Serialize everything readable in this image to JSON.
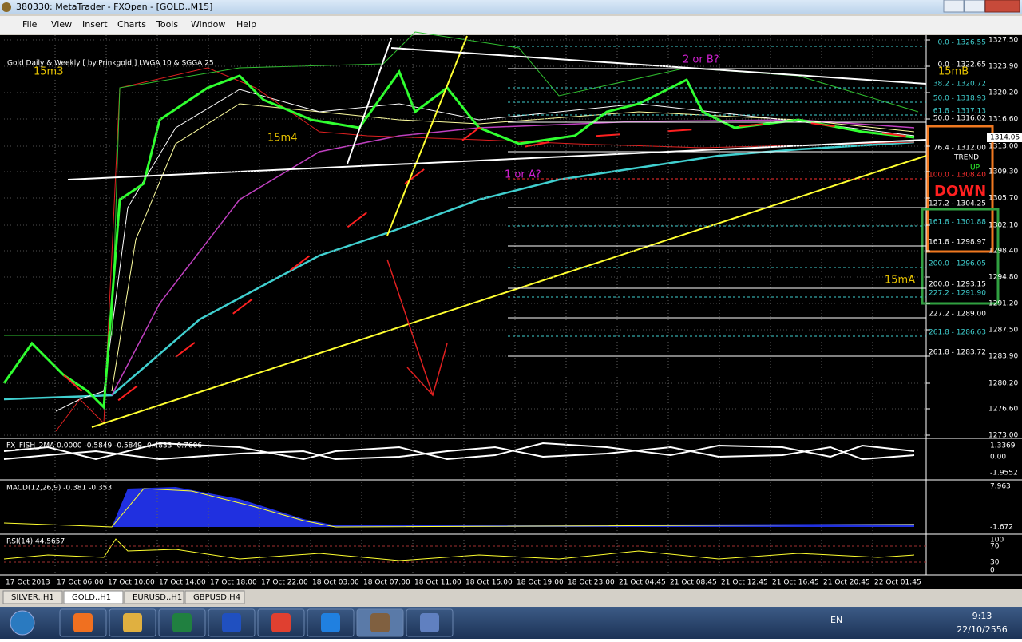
{
  "window": {
    "title": "380330: MetaTrader - FXOpen - [GOLD.,M15]"
  },
  "menu": [
    "File",
    "View",
    "Insert",
    "Charts",
    "Tools",
    "Window",
    "Help"
  ],
  "chart": {
    "header": "Gold Daily & Weekly [ by:Prinkgold ] LWGA 10  &  SGGA 25",
    "annotations": [
      "15m3",
      "15m4",
      "2 or B?",
      "1 or A?",
      "15mB",
      "15mA",
      "TREND",
      "UP",
      "DOWN"
    ],
    "fib_labels": [
      "0.0 - 1326.55",
      "0.0 - 1322.65",
      "38.2 - 1320.72",
      "50.0 - 1318.93",
      "61.8 - 1317.13",
      "50.0 - 1316.02",
      "76.4 - 1312.00",
      "100.0 - 1308.40",
      "127.2 - 1304.25",
      "161.8 - 1301.88",
      "161.8 - 1298.97",
      "200.0 - 1296.05",
      "200.0 - 1293.15",
      "227.2 - 1291.90",
      "227.2 - 1289.00",
      "261.8 - 1286.63",
      "261.8 - 1283.72"
    ],
    "price_axis": [
      "1327.50",
      "1323.90",
      "1320.20",
      "1316.60",
      "1313.00",
      "1309.30",
      "1305.70",
      "1302.10",
      "1298.40",
      "1294.80",
      "1291.20",
      "1287.50",
      "1283.90",
      "1280.20",
      "1276.60",
      "1273.00"
    ],
    "current_price": "1314.05",
    "fisher": {
      "label": "FX_FISH_2MA 0.0000 -0.5849 -0.5849 -0.4833 -0.7606",
      "axis": [
        "1.3369",
        "0.00",
        "-1.9552"
      ]
    },
    "macd": {
      "label": "MACD(12,26,9) -0.381 -0.353",
      "axis": [
        "7.963",
        "-1.672"
      ]
    },
    "rsi": {
      "label": "RSI(14) 44.5657",
      "axis": [
        "100",
        "70",
        "30",
        "0"
      ]
    },
    "time_axis": [
      "17 Oct 2013",
      "17 Oct 06:00",
      "17 Oct 10:00",
      "17 Oct 14:00",
      "17 Oct 18:00",
      "17 Oct 22:00",
      "18 Oct 03:00",
      "18 Oct 07:00",
      "18 Oct 11:00",
      "18 Oct 15:00",
      "18 Oct 19:00",
      "18 Oct 23:00",
      "21 Oct 04:45",
      "21 Oct 08:45",
      "21 Oct 12:45",
      "21 Oct 16:45",
      "21 Oct 20:45",
      "22 Oct 01:45"
    ]
  },
  "tabs": [
    "SILVER.,H1",
    "GOLD.,H1",
    "EURUSD.,H1",
    "GBPUSD,H4"
  ],
  "taskbar": {
    "language": "EN",
    "time": "9:13",
    "date": "22/10/2556"
  }
}
